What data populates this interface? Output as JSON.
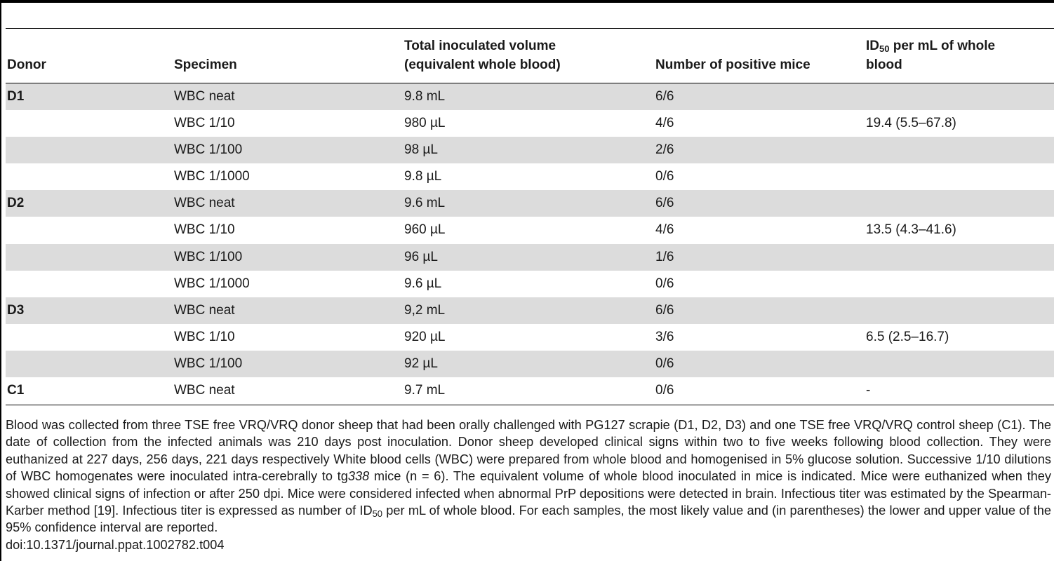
{
  "table": {
    "headers": {
      "donor": "Donor",
      "specimen": "Specimen",
      "volume_line1": "Total inoculated volume",
      "volume_line2": "(equivalent whole blood)",
      "positive": "Number of positive mice",
      "id50_prefix": "ID",
      "id50_sub": "50",
      "id50_suffix": " per mL of whole",
      "id50_line2": "blood"
    },
    "rows": [
      {
        "donor": "D1",
        "specimen": "WBC neat",
        "volume": "9.8 mL",
        "positive": "6/6",
        "id50": ""
      },
      {
        "donor": "",
        "specimen": "WBC 1/10",
        "volume": "980 µL",
        "positive": "4/6",
        "id50": "19.4 (5.5–67.8)"
      },
      {
        "donor": "",
        "specimen": "WBC 1/100",
        "volume": "98 µL",
        "positive": "2/6",
        "id50": ""
      },
      {
        "donor": "",
        "specimen": "WBC 1/1000",
        "volume": "9.8 µL",
        "positive": "0/6",
        "id50": ""
      },
      {
        "donor": "D2",
        "specimen": "WBC neat",
        "volume": "9.6 mL",
        "positive": "6/6",
        "id50": ""
      },
      {
        "donor": "",
        "specimen": "WBC 1/10",
        "volume": "960 µL",
        "positive": "4/6",
        "id50": "13.5 (4.3–41.6)"
      },
      {
        "donor": "",
        "specimen": "WBC 1/100",
        "volume": "96 µL",
        "positive": "1/6",
        "id50": ""
      },
      {
        "donor": "",
        "specimen": "WBC 1/1000",
        "volume": "9.6 µL",
        "positive": "0/6",
        "id50": ""
      },
      {
        "donor": "D3",
        "specimen": "WBC neat",
        "volume": "9,2 mL",
        "positive": "6/6",
        "id50": ""
      },
      {
        "donor": "",
        "specimen": "WBC 1/10",
        "volume": "920 µL",
        "positive": "3/6",
        "id50": "6.5 (2.5–16.7)"
      },
      {
        "donor": "",
        "specimen": "WBC 1/100",
        "volume": "92 µL",
        "positive": "0/6",
        "id50": ""
      },
      {
        "donor": "C1",
        "specimen": "WBC neat",
        "volume": "9.7 mL",
        "positive": "0/6",
        "id50": "-"
      }
    ]
  },
  "caption": {
    "part1": "Blood was collected from three TSE free VRQ/VRQ donor sheep that had been orally challenged with PG127 scrapie (D1, D2, D3) and one TSE free VRQ/VRQ control sheep (C1). The date of collection from the infected animals was 210 days post inoculation. Donor sheep developed clinical signs within two to five weeks following blood collection. They were euthanized at 227 days, 256 days, 221 days respectively White blood cells (WBC) were prepared from whole blood and homogenised in 5% glucose solution. Successive 1/10 dilutions of WBC homogenates were inoculated intra-cerebrally to tg",
    "italic": "338",
    "part2": " mice (n = 6). The equivalent volume of whole blood inoculated in mice is indicated. Mice were euthanized when they showed clinical signs of infection or after 250 dpi. Mice were considered infected when abnormal PrP depositions were detected in brain. Infectious titer was estimated by the Spearman-Karber method [19]. Infectious titer is expressed as number of ID",
    "sub": "50",
    "part3": " per mL of whole blood. For each samples, the most likely value and (in parentheses) the lower and upper value of the 95% confidence interval are reported."
  },
  "doi": "doi:10.1371/journal.ppat.1002782.t004"
}
